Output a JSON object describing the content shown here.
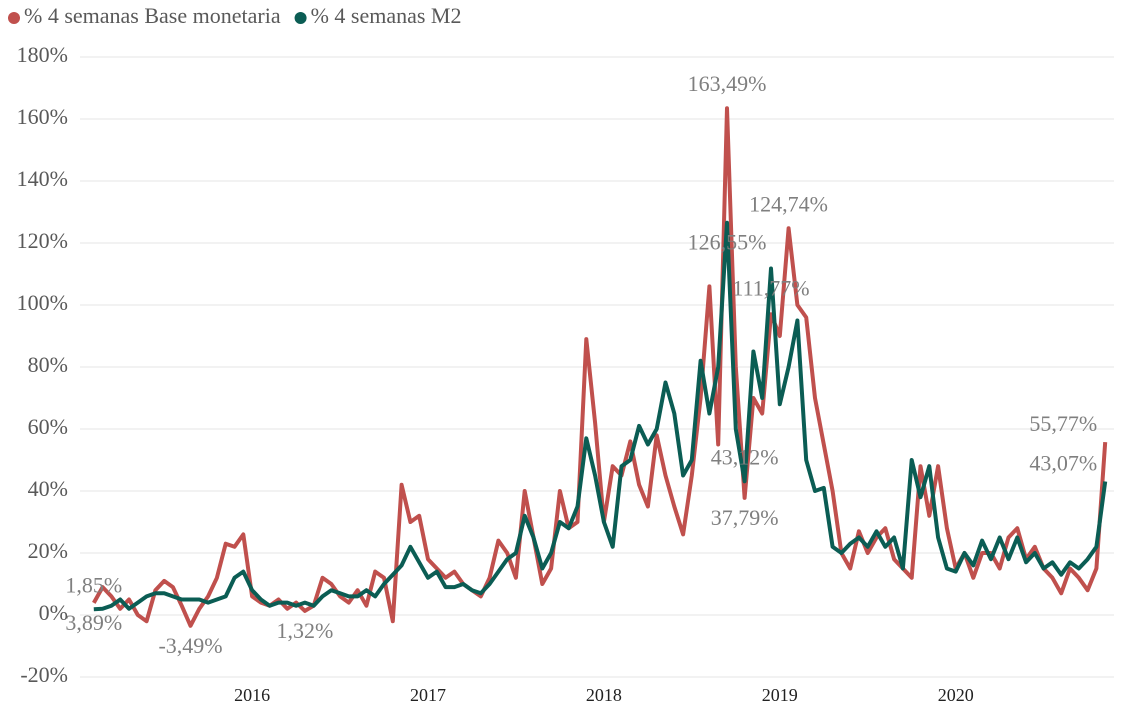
{
  "chart_data": {
    "type": "line",
    "x": [
      2015.1,
      2015.15,
      2015.2,
      2015.25,
      2015.3,
      2015.35,
      2015.4,
      2015.45,
      2015.5,
      2015.55,
      2015.6,
      2015.65,
      2015.7,
      2015.75,
      2015.8,
      2015.85,
      2015.9,
      2015.95,
      2016.0,
      2016.05,
      2016.1,
      2016.15,
      2016.2,
      2016.25,
      2016.3,
      2016.35,
      2016.4,
      2016.45,
      2016.5,
      2016.55,
      2016.6,
      2016.65,
      2016.7,
      2016.75,
      2016.8,
      2016.85,
      2016.9,
      2016.95,
      2017.0,
      2017.05,
      2017.1,
      2017.15,
      2017.2,
      2017.25,
      2017.3,
      2017.35,
      2017.4,
      2017.45,
      2017.5,
      2017.55,
      2017.6,
      2017.65,
      2017.7,
      2017.75,
      2017.8,
      2017.85,
      2017.9,
      2017.95,
      2018.0,
      2018.05,
      2018.1,
      2018.15,
      2018.2,
      2018.25,
      2018.3,
      2018.35,
      2018.4,
      2018.45,
      2018.5,
      2018.55,
      2018.6,
      2018.65,
      2018.7,
      2018.75,
      2018.8,
      2018.85,
      2018.9,
      2018.95,
      2019.0,
      2019.05,
      2019.1,
      2019.15,
      2019.2,
      2019.25,
      2019.3,
      2019.35,
      2019.4,
      2019.45,
      2019.5,
      2019.55,
      2019.6,
      2019.65,
      2019.7,
      2019.75,
      2019.8,
      2019.85,
      2019.9,
      2019.95,
      2020.0,
      2020.05,
      2020.1,
      2020.15,
      2020.2,
      2020.25,
      2020.3,
      2020.35,
      2020.4,
      2020.45,
      2020.5,
      2020.55,
      2020.6,
      2020.65,
      2020.7,
      2020.75,
      2020.8,
      2020.85
    ],
    "series": [
      {
        "name": "% 4 semanas Base monetaria",
        "color": "#c0504d",
        "values": [
          3.89,
          9,
          6,
          2,
          5,
          0,
          -2,
          8,
          11,
          9,
          3,
          -3.49,
          2,
          6,
          12,
          23,
          22,
          26,
          6,
          4,
          3,
          5,
          2,
          4,
          1.32,
          3,
          12,
          10,
          6,
          4,
          8,
          3,
          14,
          12,
          -2,
          42,
          30,
          32,
          18,
          15,
          12,
          14,
          10,
          8,
          6,
          12,
          24,
          20,
          12,
          40,
          25,
          10,
          15,
          40,
          28,
          30,
          89,
          62,
          30,
          48,
          45,
          56,
          42,
          35,
          58,
          45,
          35,
          26,
          45,
          70,
          106,
          55,
          163.49,
          80,
          37.79,
          70,
          65,
          97,
          90,
          124.74,
          100,
          96,
          70,
          55,
          40,
          20,
          15,
          27,
          20,
          25,
          28,
          18,
          15,
          12,
          48,
          32,
          48,
          28,
          15,
          20,
          12,
          20,
          20,
          15,
          25,
          28,
          18,
          22,
          15,
          12,
          7,
          15,
          12,
          8,
          15,
          55.77
        ]
      },
      {
        "name": "% 4 semanas M2",
        "color": "#0b5d54",
        "values": [
          1.85,
          2,
          3,
          5,
          2,
          4,
          6,
          7,
          7,
          6,
          5,
          5,
          5,
          4,
          5,
          6,
          12,
          14,
          8,
          5,
          3,
          4,
          4,
          3,
          4,
          3,
          6,
          8,
          7,
          6,
          6,
          8,
          6,
          10,
          13,
          16,
          22,
          17,
          12,
          14,
          9,
          9,
          10,
          8,
          7,
          10,
          14,
          18,
          20,
          32,
          25,
          15,
          20,
          30,
          28,
          35,
          57,
          45,
          30,
          22,
          48,
          50,
          61,
          55,
          60,
          75,
          65,
          45,
          50,
          82,
          65,
          80,
          126.55,
          60,
          43.12,
          85,
          70,
          111.77,
          68,
          80,
          95,
          50,
          40,
          41,
          22,
          20,
          23,
          25,
          22,
          27,
          22,
          25,
          15,
          50,
          38,
          48,
          25,
          15,
          14,
          20,
          16,
          24,
          18,
          25,
          18,
          25,
          17,
          20,
          15,
          17,
          13,
          17,
          15,
          18,
          22,
          43.07
        ]
      }
    ],
    "annotations": [
      {
        "label": "1,85%",
        "x": 2015.1,
        "y": 1.85,
        "position": "above"
      },
      {
        "label": "3,89%",
        "x": 2015.1,
        "y": 3.89,
        "position": "below"
      },
      {
        "label": "-3,49%",
        "x": 2015.65,
        "y": -3.49,
        "position": "below"
      },
      {
        "label": "1,32%",
        "x": 2016.3,
        "y": 1.32,
        "position": "below"
      },
      {
        "label": "163,49%",
        "x": 2018.7,
        "y": 163.49,
        "position": "above"
      },
      {
        "label": "126,55%",
        "x": 2018.7,
        "y": 126.55,
        "position": "below"
      },
      {
        "label": "124,74%",
        "x": 2019.05,
        "y": 124.74,
        "position": "above"
      },
      {
        "label": "111,77%",
        "x": 2018.95,
        "y": 111.77,
        "position": "below"
      },
      {
        "label": "43,12%",
        "x": 2018.8,
        "y": 43.12,
        "position": "above"
      },
      {
        "label": "37,79%",
        "x": 2018.8,
        "y": 37.79,
        "position": "below"
      },
      {
        "label": "55,77%",
        "x": 2020.85,
        "y": 55.77,
        "position": "left"
      },
      {
        "label": "43,07%",
        "x": 2020.85,
        "y": 43.07,
        "position": "left"
      }
    ],
    "xlim": [
      2015.05,
      2020.9
    ],
    "xticks": [
      2016,
      2017,
      2018,
      2019,
      2020
    ],
    "ylim": [
      -20,
      180
    ],
    "yticks": [
      {
        "value": -20,
        "label": "-20%"
      },
      {
        "value": 0,
        "label": "0%"
      },
      {
        "value": 20,
        "label": "20%"
      },
      {
        "value": 40,
        "label": "40%"
      },
      {
        "value": 60,
        "label": "60%"
      },
      {
        "value": 80,
        "label": "80%"
      },
      {
        "value": 100,
        "label": "100%"
      },
      {
        "value": 120,
        "label": "120%"
      },
      {
        "value": 140,
        "label": "140%"
      },
      {
        "value": 160,
        "label": "160%"
      },
      {
        "value": 180,
        "label": "180%"
      }
    ],
    "grid": true,
    "legend": "top"
  }
}
